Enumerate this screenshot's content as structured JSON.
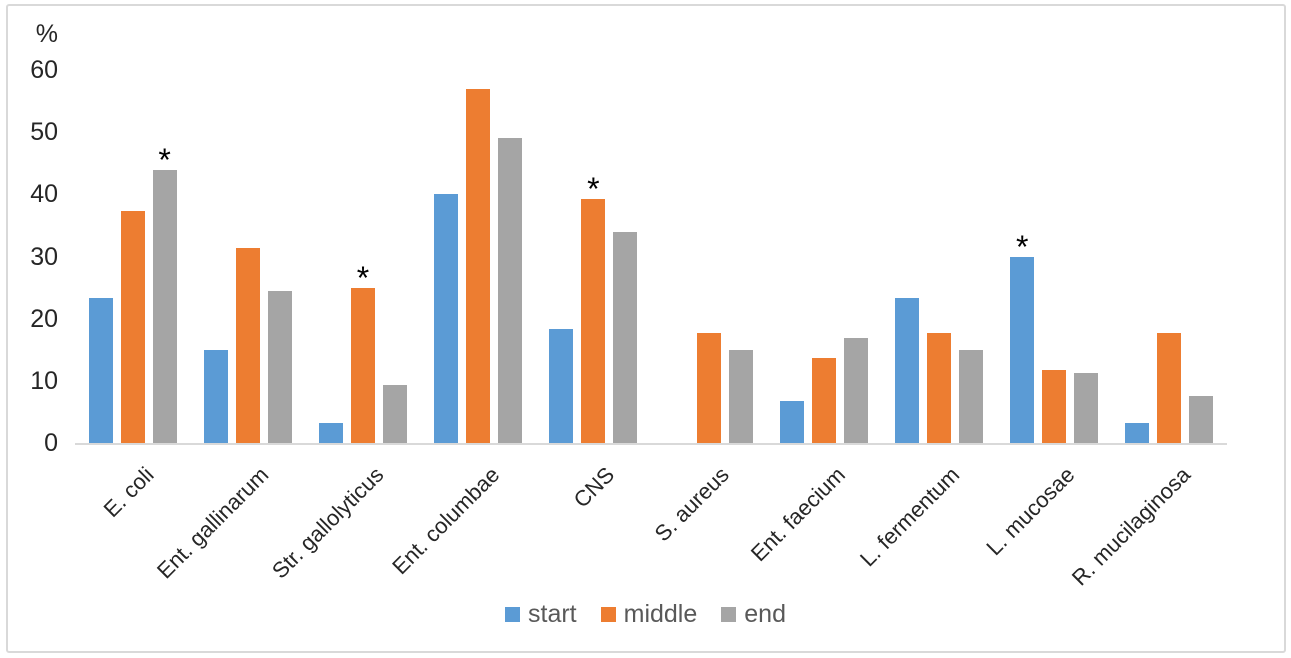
{
  "chart_data": {
    "type": "bar",
    "title": "",
    "ylabel": "%",
    "xlabel": "",
    "ylim": [
      0,
      60
    ],
    "yticks": [
      60,
      50,
      40,
      30,
      20,
      10,
      0
    ],
    "grid": false,
    "legend_position": "bottom",
    "categories": [
      "E. coli",
      "Ent. gallinarum",
      "Str. gallolyticus",
      "Ent. columbae",
      "CNS",
      "S. aureus",
      "Ent. faecium",
      "L. fermentum",
      "L. mucosae",
      "R. mucilaginosa"
    ],
    "series": [
      {
        "name": "start",
        "color": "#5B9BD5",
        "values": [
          23.3,
          15.0,
          3.3,
          40.0,
          18.3,
          0,
          6.7,
          23.3,
          30.0,
          3.3
        ]
      },
      {
        "name": "middle",
        "color": "#ED7D31",
        "values": [
          37.3,
          31.4,
          25.0,
          57.0,
          39.3,
          17.7,
          13.7,
          17.7,
          11.7,
          17.7
        ]
      },
      {
        "name": "end",
        "color": "#A5A5A5",
        "values": [
          43.9,
          24.5,
          9.4,
          49.0,
          34.0,
          15.0,
          16.9,
          15.0,
          11.2,
          7.5
        ]
      }
    ],
    "annotations": [
      {
        "category": "E. coli",
        "series": "end",
        "symbol": "*"
      },
      {
        "category": "Str. gallolyticus",
        "series": "middle",
        "symbol": "*"
      },
      {
        "category": "CNS",
        "series": "middle",
        "symbol": "*"
      },
      {
        "category": "L. mucosae",
        "series": "start",
        "symbol": "*"
      }
    ],
    "colors": {
      "axis_line": "#d9d9d9",
      "frame_border": "#d9d9d9",
      "tick_text": "#262626",
      "legend_text": "#595959"
    }
  }
}
